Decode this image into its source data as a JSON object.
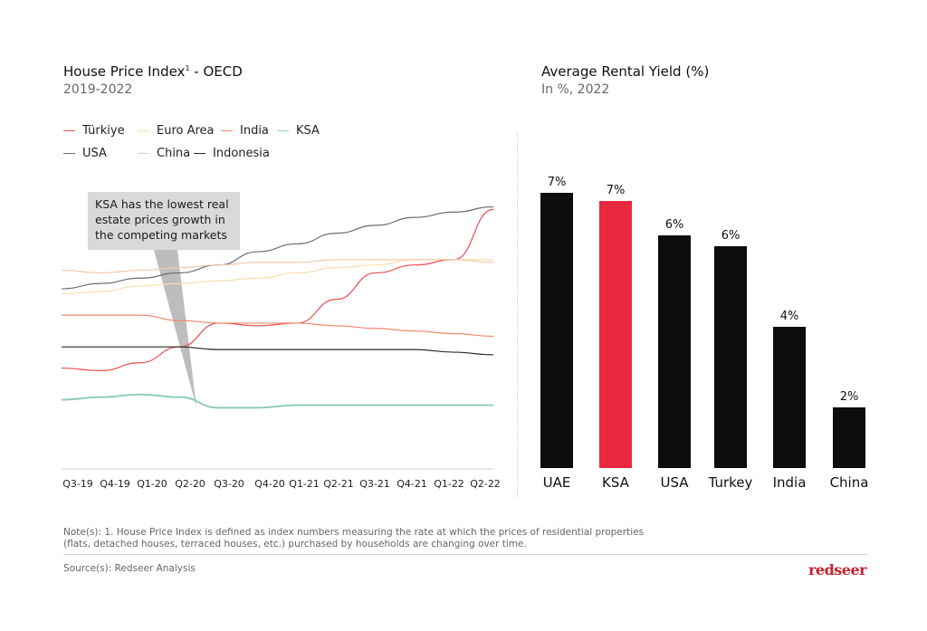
{
  "left_panel": {
    "title": "House Price Index",
    "title_sup": "1",
    "title_suffix": " - OECD",
    "subtitle": "2019-2022",
    "callout": "KSA has the lowest real estate prices growth in the competing markets"
  },
  "right_panel": {
    "title": "Average Rental Yield (%)",
    "subtitle": "In %, 2022"
  },
  "notes": {
    "line1": "Note(s): 1. House Price Index is defined as index numbers measuring the rate at which the prices of residential properties",
    "line2": "(flats, detached houses, terraced houses, etc.) purchased by households are changing over time.",
    "source": "Source(s): Redseer Analysis",
    "logo": "redseer"
  },
  "colors": {
    "Türkiye": "#e8504f",
    "Euro Area": "#f5dfb0",
    "India": "#f08a6c",
    "KSA": "#8fcdb5",
    "USA": "#6b6b73",
    "China": "#f6c9a8",
    "Indonesia": "#2a2a2a",
    "bar_default": "#0d0d0d",
    "bar_highlight": "#e8283c"
  },
  "chart_data": [
    {
      "type": "line",
      "title": "House Price Index¹ - OECD",
      "subtitle": "2019-2022",
      "x": [
        "Q3-19",
        "Q4-19",
        "Q1-20",
        "Q2-20",
        "Q3-20",
        "Q4-20",
        "Q1-21",
        "Q2-21",
        "Q3-21",
        "Q4-21",
        "Q1-22",
        "Q2-22"
      ],
      "legend_placement": "top",
      "series": [
        {
          "name": "Türkiye",
          "values": [
            32,
            31,
            34,
            40,
            49,
            48,
            49,
            58,
            68,
            71,
            73,
            92
          ]
        },
        {
          "name": "Euro Area",
          "values": [
            60,
            61,
            63,
            64,
            65,
            66,
            68,
            70,
            71,
            73,
            73,
            73
          ]
        },
        {
          "name": "India",
          "values": [
            52,
            52,
            52,
            50,
            49,
            49,
            49,
            48,
            47,
            46,
            45,
            44
          ]
        },
        {
          "name": "KSA",
          "values": [
            20,
            21,
            22,
            21,
            17,
            17,
            18,
            18,
            18,
            18,
            18,
            18
          ]
        },
        {
          "name": "USA",
          "values": [
            62,
            64,
            66,
            68,
            71,
            76,
            79,
            83,
            86,
            89,
            91,
            93
          ]
        },
        {
          "name": "China",
          "values": [
            69,
            68,
            69,
            70,
            71,
            72,
            72,
            73,
            73,
            73,
            73,
            72
          ]
        },
        {
          "name": "Indonesia",
          "values": [
            40,
            40,
            40,
            40,
            39,
            39,
            39,
            39,
            39,
            39,
            38,
            37
          ]
        }
      ]
    },
    {
      "type": "bar",
      "title": "Average Rental Yield (%)",
      "subtitle": "In %, 2022",
      "categories": [
        "UAE",
        "KSA",
        "USA",
        "Turkey",
        "India",
        "China"
      ],
      "values": [
        7,
        7,
        6,
        6,
        4,
        2
      ],
      "labels": [
        "7%",
        "7%",
        "6%",
        "6%",
        "4%",
        "2%"
      ],
      "highlight": "KSA"
    }
  ]
}
